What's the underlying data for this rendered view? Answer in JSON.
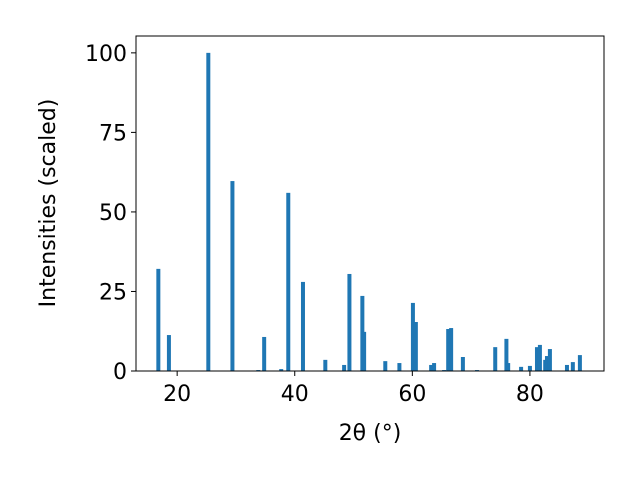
{
  "chart_data": {
    "type": "bar",
    "x_label": "2θ (°)",
    "y_label": "Intensities (scaled)",
    "color": "#1f77b4",
    "x": [
      16.8,
      18.6,
      25.3,
      29.4,
      33.8,
      34.8,
      37.7,
      38.9,
      41.4,
      45.2,
      48.4,
      49.3,
      51.5,
      51.8,
      55.4,
      57.8,
      60.1,
      60.6,
      63.2,
      63.7,
      65.4,
      66.1,
      66.6,
      68.6,
      71.0,
      74.1,
      76.0,
      76.3,
      78.5,
      80.0,
      81.2,
      81.7,
      82.6,
      82.9,
      83.4,
      86.3,
      87.3,
      88.5
    ],
    "values": [
      32.1,
      11.3,
      100,
      59.7,
      0.3,
      10.7,
      0.6,
      56,
      28,
      3.5,
      1.9,
      30.5,
      23.6,
      12.3,
      3.1,
      2.5,
      21.4,
      15.4,
      1.9,
      2.5,
      0.3,
      13.2,
      13.5,
      4.4,
      0.3,
      7.5,
      10.1,
      2.5,
      1.3,
      1.6,
      7.5,
      8.2,
      3.5,
      4.7,
      6.9,
      1.9,
      2.8,
      5.0
    ],
    "xlim": [
      13.0,
      92.6
    ],
    "ylim": [
      0,
      105.3
    ],
    "xticks": [
      20,
      40,
      60,
      80
    ],
    "yticks": [
      0,
      25,
      50,
      75,
      100
    ]
  }
}
